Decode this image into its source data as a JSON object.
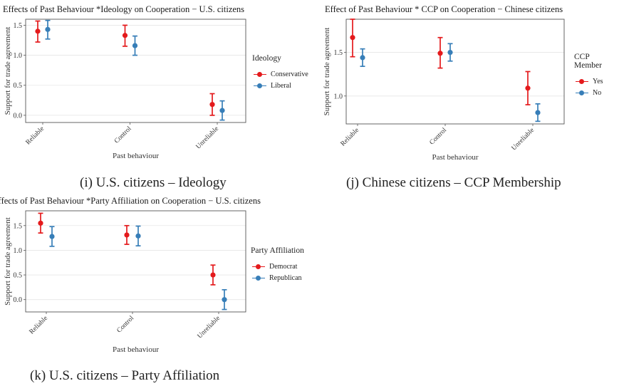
{
  "colors": {
    "red": "#e41a1c",
    "blue": "#377eb8"
  },
  "charts": [
    {
      "caption": "(i) U.S. citizens – Ideology",
      "chart_data": {
        "type": "scatter",
        "title": "Effects of Past Behaviour *Ideology on Cooperation − U.S. citizens",
        "xlabel": "Past behaviour",
        "ylabel": "Support for trade agreement",
        "categories": [
          "Reliable",
          "Control",
          "Unreliable"
        ],
        "yticks": [
          "0.0",
          "0.5",
          "1.0",
          "1.5"
        ],
        "ylim": [
          -0.12,
          1.6
        ],
        "legend_title": "Ideology",
        "legend_position": "right",
        "grid": true,
        "series": [
          {
            "name": "Conservative",
            "color": "#e41a1c",
            "values": [
              1.4,
              1.33,
              0.18
            ],
            "lower": [
              1.22,
              1.15,
              0.0
            ],
            "upper": [
              1.57,
              1.5,
              0.36
            ]
          },
          {
            "name": "Liberal",
            "color": "#377eb8",
            "values": [
              1.43,
              1.16,
              0.08
            ],
            "lower": [
              1.27,
              1.0,
              -0.08
            ],
            "upper": [
              1.58,
              1.32,
              0.24
            ]
          }
        ]
      }
    },
    {
      "caption": "(j) Chinese citizens – CCP Membership",
      "chart_data": {
        "type": "scatter",
        "title": "Effect of Past Behaviour * CCP on Cooperation − Chinese citizens",
        "xlabel": "Past behaviour",
        "ylabel": "Support for trade agreement",
        "categories": [
          "Reliable",
          "Control",
          "Unreliable"
        ],
        "yticks": [
          "1.0",
          "1.5"
        ],
        "ylim": [
          0.68,
          1.88
        ],
        "legend_title": "CCP Member",
        "legend_position": "right",
        "grid": true,
        "series": [
          {
            "name": "Yes",
            "color": "#e41a1c",
            "values": [
              1.67,
              1.49,
              1.09
            ],
            "lower": [
              1.45,
              1.32,
              0.9
            ],
            "upper": [
              1.88,
              1.67,
              1.28
            ]
          },
          {
            "name": "No",
            "color": "#377eb8",
            "values": [
              1.44,
              1.5,
              0.81
            ],
            "lower": [
              1.34,
              1.4,
              0.71
            ],
            "upper": [
              1.54,
              1.6,
              0.91
            ]
          }
        ]
      }
    },
    {
      "caption": "(k) U.S. citizens – Party Affiliation",
      "chart_data": {
        "type": "scatter",
        "title": "Effects of Past Behaviour *Party Affiliation on Cooperation − U.S. citizens",
        "xlabel": "Past behaviour",
        "ylabel": "Support for trade agreement",
        "categories": [
          "Reliable",
          "Control",
          "Unreliable"
        ],
        "yticks": [
          "0.0",
          "0.5",
          "1.0",
          "1.5"
        ],
        "ylim": [
          -0.25,
          1.8
        ],
        "legend_title": "Party Affiliation",
        "legend_position": "right",
        "grid": true,
        "series": [
          {
            "name": "Democrat",
            "color": "#e41a1c",
            "values": [
              1.55,
              1.31,
              0.5
            ],
            "lower": [
              1.35,
              1.12,
              0.3
            ],
            "upper": [
              1.75,
              1.5,
              0.7
            ]
          },
          {
            "name": "Republican",
            "color": "#377eb8",
            "values": [
              1.28,
              1.29,
              0.0
            ],
            "lower": [
              1.08,
              1.09,
              -0.2
            ],
            "upper": [
              1.48,
              1.49,
              0.2
            ]
          }
        ]
      }
    }
  ]
}
